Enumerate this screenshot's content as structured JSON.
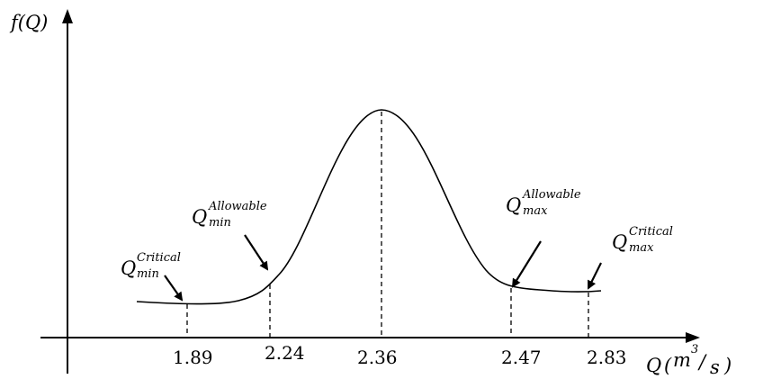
{
  "diagram": {
    "y_axis_label": "f(Q)",
    "x_axis_label": {
      "symbol": "Q",
      "unit_open": "(",
      "unit_base": "m",
      "unit_exp": "3",
      "unit_slash": "/",
      "unit_denominator": "s",
      "unit_close": ")"
    },
    "ticks": [
      "1.89",
      "2.24",
      "2.36",
      "2.47",
      "2.83"
    ],
    "annotations": [
      {
        "id": "q-min-critical",
        "base": "Q",
        "superscript": "Critical",
        "subscript": "min"
      },
      {
        "id": "q-min-allowable",
        "base": "Q",
        "superscript": "Allowable",
        "subscript": "min"
      },
      {
        "id": "q-max-allowable",
        "base": "Q",
        "superscript": "Allowable",
        "subscript": "max"
      },
      {
        "id": "q-max-critical",
        "base": "Q",
        "superscript": "Critical",
        "subscript": "max"
      }
    ]
  }
}
